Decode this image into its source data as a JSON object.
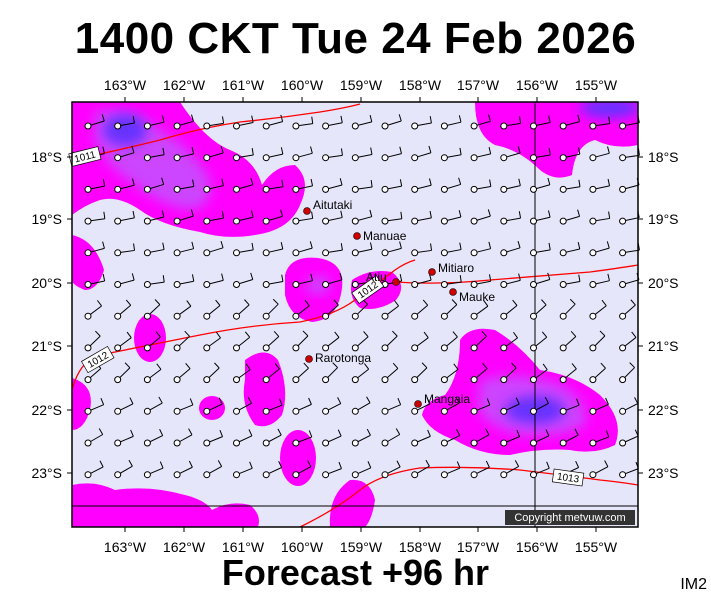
{
  "title": "1400 CKT Tue 24 Feb 2026",
  "subtitle": "Forecast +96 hr",
  "corner_tag": "IM2",
  "copyright": "Copyright metvuw.com",
  "lon_labels": [
    "163°W",
    "162°W",
    "161°W",
    "160°W",
    "159°W",
    "158°W",
    "157°W",
    "156°W",
    "155°W"
  ],
  "lat_labels": [
    "18°S",
    "19°S",
    "20°S",
    "21°S",
    "22°S",
    "23°S"
  ],
  "places": [
    "Aitutaki",
    "Manuae",
    "Mitiaro",
    "Atiu",
    "Mauke",
    "Rarotonga",
    "Mangaia"
  ],
  "isobars": [
    "1011",
    "1012",
    "1012",
    "1013"
  ],
  "colors": {
    "background": "#e6e6fa",
    "rain_light": "#ff00ff",
    "rain_medium": "#cc44ff",
    "rain_heavy": "#6633ff",
    "isobar": "#ff0000"
  }
}
